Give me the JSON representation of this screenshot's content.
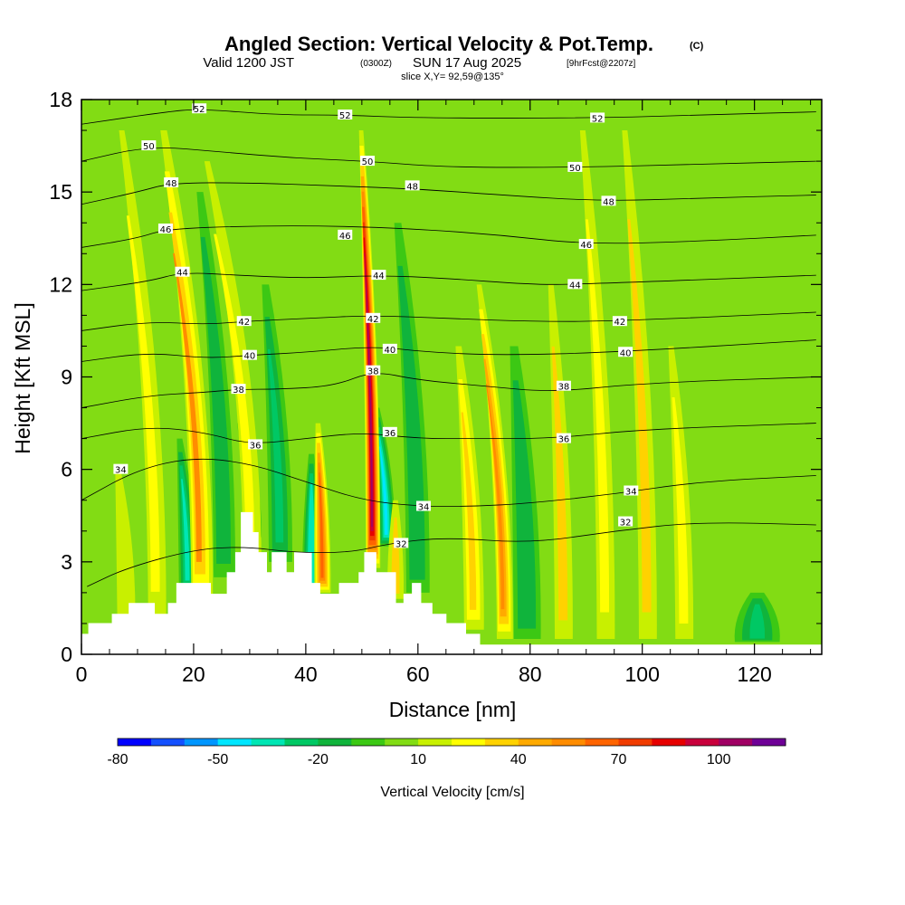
{
  "title": {
    "main": "Angled Section: Vertical Velocity & Pot.Temp.",
    "main_unit": "(C)",
    "valid_prefix": "Valid 1200 JST",
    "valid_utc": "(0300Z)",
    "valid_date": "SUN 17 Aug 2025",
    "forecast": "[9hrFcst@2207z]",
    "slice": "slice X,Y= 92,59@135°"
  },
  "chart_data": {
    "type": "heatmap",
    "xlabel": "Distance [nm]",
    "ylabel": "Height [Kft MSL]",
    "xlim": [
      0,
      132
    ],
    "ylim": [
      0,
      18
    ],
    "x_ticks": [
      "0",
      "20",
      "40",
      "60",
      "80",
      "100",
      "120"
    ],
    "x_tick_values": [
      0,
      20,
      40,
      60,
      80,
      100,
      120
    ],
    "y_ticks": [
      "0",
      "3",
      "6",
      "9",
      "12",
      "15",
      "18"
    ],
    "y_tick_values": [
      0,
      3,
      6,
      9,
      12,
      15,
      18
    ],
    "background_w_cms": 8,
    "colorbar": {
      "label": "Vertical Velocity [cm/s]",
      "min": -80,
      "step": 10,
      "colors": [
        "#0000ff",
        "#1450ff",
        "#0096ff",
        "#00e6ff",
        "#00e6b4",
        "#00c864",
        "#10b43c",
        "#3cc814",
        "#82dc14",
        "#c8f000",
        "#ffff00",
        "#ffd200",
        "#ffaa00",
        "#ff8c00",
        "#ff6400",
        "#f03c00",
        "#e60000",
        "#c8003c",
        "#a00064",
        "#6e0096"
      ],
      "tick_labels": [
        "-80",
        "-50",
        "-20",
        "10",
        "40",
        "70",
        "100"
      ],
      "tick_values": [
        -80,
        -50,
        -20,
        10,
        40,
        70,
        100
      ]
    },
    "terrain_kft": [
      [
        0,
        0.65
      ],
      [
        1.3,
        1.0
      ],
      [
        5.5,
        1.3
      ],
      [
        8.5,
        1.65
      ],
      [
        13,
        1.3
      ],
      [
        15.5,
        1.65
      ],
      [
        17,
        2.3
      ],
      [
        23,
        1.95
      ],
      [
        26,
        2.65
      ],
      [
        27.5,
        3.3
      ],
      [
        28.5,
        4.6
      ],
      [
        30.5,
        3.95
      ],
      [
        31.5,
        3.3
      ],
      [
        33,
        2.65
      ],
      [
        34,
        3.3
      ],
      [
        36.5,
        2.65
      ],
      [
        38,
        3.3
      ],
      [
        41,
        2.3
      ],
      [
        42.5,
        1.95
      ],
      [
        46,
        2.3
      ],
      [
        49.5,
        2.65
      ],
      [
        50.5,
        3.3
      ],
      [
        52.5,
        2.65
      ],
      [
        56,
        1.65
      ],
      [
        57.5,
        1.95
      ],
      [
        59,
        2.3
      ],
      [
        60.5,
        1.65
      ],
      [
        62.5,
        1.3
      ],
      [
        65,
        1.0
      ],
      [
        68.5,
        0.65
      ],
      [
        71,
        0.3
      ],
      [
        132,
        0.3
      ]
    ],
    "updrafts": [
      {
        "x": 21.5,
        "y0": 1.8,
        "y1": 17,
        "tilt": -0.45,
        "peak": 50,
        "width": 1.2
      },
      {
        "x": 30.5,
        "y0": 2.5,
        "y1": 16,
        "tilt": -0.6,
        "peak": 25,
        "width": 1.0
      },
      {
        "x": 43.0,
        "y0": 2.0,
        "y1": 7.5,
        "tilt": -0.15,
        "peak": 65,
        "width": 0.9
      },
      {
        "x": 52.0,
        "y0": 2.8,
        "y1": 17,
        "tilt": -0.15,
        "peak": 105,
        "width": 0.8
      },
      {
        "x": 56.0,
        "y0": 1.8,
        "y1": 5.0,
        "tilt": 0.0,
        "peak": 30,
        "width": 0.9
      },
      {
        "x": 70.0,
        "y0": 0.8,
        "y1": 10,
        "tilt": -0.3,
        "peak": 35,
        "width": 1.1
      },
      {
        "x": 75.5,
        "y0": 0.5,
        "y1": 12,
        "tilt": -0.4,
        "peak": 55,
        "width": 0.9
      },
      {
        "x": 86.0,
        "y0": 0.5,
        "y1": 12,
        "tilt": -0.2,
        "peak": 30,
        "width": 1.0
      },
      {
        "x": 93.5,
        "y0": 0.5,
        "y1": 17,
        "tilt": -0.25,
        "peak": 25,
        "width": 1.0
      },
      {
        "x": 101.0,
        "y0": 0.5,
        "y1": 17,
        "tilt": -0.25,
        "peak": 30,
        "width": 1.0
      },
      {
        "x": 107.5,
        "y0": 0.5,
        "y1": 10,
        "tilt": -0.25,
        "peak": 20,
        "width": 1.0
      },
      {
        "x": 13.5,
        "y0": 1.2,
        "y1": 17,
        "tilt": -0.4,
        "peak": 20,
        "width": 1.0
      },
      {
        "x": 8.0,
        "y0": 1.0,
        "y1": 6.0,
        "tilt": -0.3,
        "peak": 18,
        "width": 1.0
      }
    ],
    "downdrafts": [
      {
        "x": 30.5,
        "y0": 3.8,
        "y1": 7.5,
        "tilt": -0.6,
        "peak": -75,
        "width": 1.0
      },
      {
        "x": 54.5,
        "y0": 3.5,
        "y1": 8.0,
        "tilt": -0.4,
        "peak": -45,
        "width": 0.9
      },
      {
        "x": 41.0,
        "y0": 2.0,
        "y1": 6.5,
        "tilt": 0.0,
        "peak": -40,
        "width": 1.0
      },
      {
        "x": 19.0,
        "y0": 2.0,
        "y1": 7.0,
        "tilt": -0.3,
        "peak": -35,
        "width": 1.0
      },
      {
        "x": 35.5,
        "y0": 3.0,
        "y1": 12.0,
        "tilt": -0.3,
        "peak": -22,
        "width": 1.3
      },
      {
        "x": 25.5,
        "y0": 2.5,
        "y1": 15.0,
        "tilt": -0.35,
        "peak": -20,
        "width": 1.2
      },
      {
        "x": 60.0,
        "y0": 2.0,
        "y1": 14.0,
        "tilt": -0.3,
        "peak": -20,
        "width": 1.3
      },
      {
        "x": 79.5,
        "y0": 0.5,
        "y1": 10.0,
        "tilt": -0.25,
        "peak": -20,
        "width": 1.5
      },
      {
        "x": 120.5,
        "y0": 0.4,
        "y1": 2.0,
        "tilt": 0.0,
        "peak": -25,
        "width": 2.5
      }
    ],
    "theta_contours": [
      {
        "value": 32,
        "label": "32",
        "points": [
          [
            1,
            2.2
          ],
          [
            8,
            2.8
          ],
          [
            20,
            3.4
          ],
          [
            29,
            3.5
          ],
          [
            38,
            3.3
          ],
          [
            48,
            3.3
          ],
          [
            55,
            3.6
          ],
          [
            65,
            3.8
          ],
          [
            80,
            3.6
          ],
          [
            95,
            4.0
          ],
          [
            110,
            4.3
          ],
          [
            131,
            4.2
          ]
        ],
        "labels_at": [
          [
            57,
            3.6
          ],
          [
            97,
            4.3
          ]
        ]
      },
      {
        "value": 34,
        "label": "34",
        "points": [
          [
            0,
            5.0
          ],
          [
            10,
            6.0
          ],
          [
            20,
            6.4
          ],
          [
            30,
            6.2
          ],
          [
            40,
            5.6
          ],
          [
            50,
            5.0
          ],
          [
            60,
            4.8
          ],
          [
            70,
            4.8
          ],
          [
            80,
            4.9
          ],
          [
            95,
            5.2
          ],
          [
            110,
            5.6
          ],
          [
            131,
            5.8
          ]
        ],
        "labels_at": [
          [
            7,
            6.0
          ],
          [
            61,
            4.8
          ],
          [
            98,
            5.3
          ]
        ]
      },
      {
        "value": 36,
        "label": "36",
        "points": [
          [
            0,
            7.0
          ],
          [
            12,
            7.4
          ],
          [
            22,
            7.2
          ],
          [
            30,
            6.8
          ],
          [
            40,
            7.0
          ],
          [
            50,
            7.2
          ],
          [
            60,
            7.0
          ],
          [
            70,
            7.0
          ],
          [
            84,
            7.0
          ],
          [
            100,
            7.3
          ],
          [
            131,
            7.5
          ]
        ],
        "labels_at": [
          [
            31,
            6.8
          ],
          [
            55,
            7.2
          ],
          [
            86,
            7.0
          ]
        ]
      },
      {
        "value": 38,
        "label": "38",
        "points": [
          [
            0,
            8.0
          ],
          [
            12,
            8.4
          ],
          [
            22,
            8.5
          ],
          [
            28,
            8.6
          ],
          [
            35,
            8.6
          ],
          [
            45,
            8.7
          ],
          [
            52,
            9.2
          ],
          [
            60,
            8.9
          ],
          [
            72,
            8.7
          ],
          [
            84,
            8.5
          ],
          [
            100,
            8.8
          ],
          [
            131,
            9.0
          ]
        ],
        "labels_at": [
          [
            28,
            8.6
          ],
          [
            52,
            9.2
          ],
          [
            86,
            8.7
          ]
        ]
      },
      {
        "value": 40,
        "label": "40",
        "points": [
          [
            0,
            9.5
          ],
          [
            12,
            9.8
          ],
          [
            22,
            9.6
          ],
          [
            30,
            9.7
          ],
          [
            40,
            9.8
          ],
          [
            52,
            10.0
          ],
          [
            62,
            9.8
          ],
          [
            75,
            9.7
          ],
          [
            95,
            9.8
          ],
          [
            131,
            10.2
          ]
        ],
        "labels_at": [
          [
            30,
            9.7
          ],
          [
            55,
            9.9
          ],
          [
            97,
            9.8
          ]
        ]
      },
      {
        "value": 42,
        "label": "42",
        "points": [
          [
            0,
            10.5
          ],
          [
            12,
            10.8
          ],
          [
            22,
            10.7
          ],
          [
            29,
            10.8
          ],
          [
            40,
            10.9
          ],
          [
            52,
            11.0
          ],
          [
            65,
            10.9
          ],
          [
            80,
            10.8
          ],
          [
            94,
            10.8
          ],
          [
            131,
            11.1
          ]
        ],
        "labels_at": [
          [
            29,
            10.8
          ],
          [
            52,
            10.9
          ],
          [
            96,
            10.8
          ]
        ]
      },
      {
        "value": 44,
        "label": "44",
        "points": [
          [
            0,
            11.8
          ],
          [
            12,
            12.1
          ],
          [
            18,
            12.4
          ],
          [
            28,
            12.3
          ],
          [
            40,
            12.2
          ],
          [
            53,
            12.3
          ],
          [
            65,
            12.2
          ],
          [
            80,
            12.0
          ],
          [
            88,
            12.0
          ],
          [
            131,
            12.3
          ]
        ],
        "labels_at": [
          [
            18,
            12.4
          ],
          [
            53,
            12.3
          ],
          [
            88,
            12.0
          ]
        ]
      },
      {
        "value": 46,
        "label": "46",
        "points": [
          [
            0,
            13.2
          ],
          [
            10,
            13.5
          ],
          [
            15,
            13.8
          ],
          [
            30,
            13.9
          ],
          [
            45,
            13.9
          ],
          [
            60,
            13.8
          ],
          [
            75,
            13.6
          ],
          [
            90,
            13.3
          ],
          [
            110,
            13.4
          ],
          [
            131,
            13.6
          ]
        ],
        "labels_at": [
          [
            15,
            13.8
          ],
          [
            47,
            13.6
          ],
          [
            90,
            13.3
          ]
        ]
      },
      {
        "value": 48,
        "label": "48",
        "points": [
          [
            0,
            14.6
          ],
          [
            10,
            15.0
          ],
          [
            16,
            15.3
          ],
          [
            30,
            15.3
          ],
          [
            45,
            15.2
          ],
          [
            60,
            15.1
          ],
          [
            75,
            14.9
          ],
          [
            93,
            14.7
          ],
          [
            110,
            14.8
          ],
          [
            131,
            14.9
          ]
        ],
        "labels_at": [
          [
            16,
            15.3
          ],
          [
            59,
            15.2
          ],
          [
            94,
            14.7
          ]
        ]
      },
      {
        "value": 50,
        "label": "50",
        "points": [
          [
            0,
            16.0
          ],
          [
            12,
            16.5
          ],
          [
            25,
            16.3
          ],
          [
            38,
            16.1
          ],
          [
            51,
            16.0
          ],
          [
            65,
            15.8
          ],
          [
            88,
            15.8
          ],
          [
            110,
            15.9
          ],
          [
            131,
            16.0
          ]
        ],
        "labels_at": [
          [
            12,
            16.5
          ],
          [
            51,
            16.0
          ],
          [
            88,
            15.8
          ]
        ]
      },
      {
        "value": 52,
        "label": "52",
        "points": [
          [
            0,
            17.2
          ],
          [
            15,
            17.6
          ],
          [
            21,
            17.7
          ],
          [
            35,
            17.5
          ],
          [
            47,
            17.5
          ],
          [
            60,
            17.4
          ],
          [
            92,
            17.4
          ],
          [
            110,
            17.5
          ],
          [
            131,
            17.6
          ]
        ],
        "labels_at": [
          [
            21,
            17.7
          ],
          [
            47,
            17.5
          ],
          [
            92,
            17.4
          ]
        ]
      }
    ]
  }
}
